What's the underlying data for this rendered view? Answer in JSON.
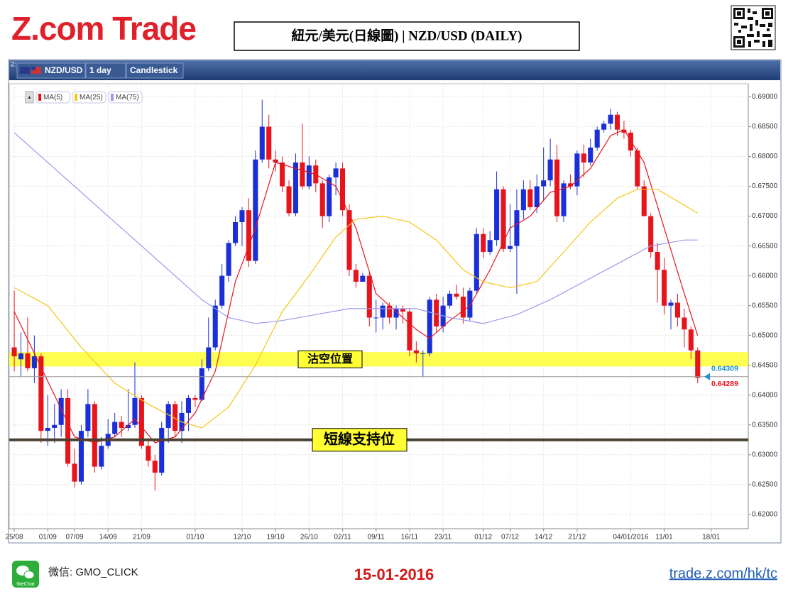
{
  "header": {
    "logo": "Z.com Trade",
    "title": "紐元/美元(日線圖) | NZD/USD  (DAILY)"
  },
  "toolbar": {
    "panel": "2:",
    "symbol": "NZD/USD",
    "interval": "1 day",
    "style": "Candlestick"
  },
  "chart_data": {
    "type": "candlestick",
    "up_color": "#1a2fd8",
    "down_color": "#e8141c",
    "grid": true,
    "open": [
      0.648,
      0.646,
      0.647,
      0.6445,
      0.6465,
      0.634,
      0.6345,
      0.635,
      0.6395,
      0.6285,
      0.6255,
      0.634,
      0.6385,
      0.628,
      0.6315,
      0.6335,
      0.6355,
      0.6345,
      0.635,
      0.6395,
      0.6315,
      0.629,
      0.627,
      0.6345,
      0.6385,
      0.634,
      0.637,
      0.6395,
      0.6392,
      0.6445,
      0.648,
      0.655,
      0.66,
      0.6655,
      0.669,
      0.671,
      0.6625,
      0.6795,
      0.685,
      0.6795,
      0.679,
      0.675,
      0.6705,
      0.679,
      0.675,
      0.6785,
      0.6755,
      0.67,
      0.6765,
      0.678,
      0.671,
      0.661,
      0.659,
      0.66,
      0.653,
      0.653,
      0.655,
      0.653,
      0.6545,
      0.654,
      0.6475,
      0.647,
      0.647,
      0.656,
      0.6515,
      0.655,
      0.657,
      0.6565,
      0.653,
      0.6575,
      0.667,
      0.664,
      0.666,
      0.6745,
      0.6645,
      0.665,
      0.671,
      0.6745,
      0.6715,
      0.675,
      0.676,
      0.6795,
      0.67,
      0.6755,
      0.675,
      0.6805,
      0.679,
      0.6815,
      0.6845,
      0.6855,
      0.687,
      0.6845,
      0.684,
      0.681,
      0.675,
      0.67,
      0.664,
      0.661,
      0.655,
      0.6555,
      0.653,
      0.651,
      0.6475
    ],
    "high": [
      0.6575,
      0.6505,
      0.653,
      0.65,
      0.647,
      0.64,
      0.6385,
      0.641,
      0.641,
      0.631,
      0.635,
      0.641,
      0.639,
      0.633,
      0.636,
      0.637,
      0.6365,
      0.641,
      0.6455,
      0.64,
      0.6325,
      0.63,
      0.6355,
      0.639,
      0.639,
      0.639,
      0.64,
      0.64,
      0.646,
      0.653,
      0.656,
      0.662,
      0.666,
      0.67,
      0.6715,
      0.673,
      0.681,
      0.6895,
      0.687,
      0.681,
      0.68,
      0.676,
      0.6805,
      0.6855,
      0.68,
      0.6795,
      0.676,
      0.677,
      0.679,
      0.679,
      0.672,
      0.662,
      0.6605,
      0.6605,
      0.656,
      0.6555,
      0.6555,
      0.655,
      0.655,
      0.6545,
      0.649,
      0.6475,
      0.6565,
      0.657,
      0.6565,
      0.6575,
      0.6585,
      0.658,
      0.658,
      0.668,
      0.668,
      0.6675,
      0.6775,
      0.675,
      0.672,
      0.6745,
      0.676,
      0.676,
      0.677,
      0.6815,
      0.683,
      0.682,
      0.676,
      0.677,
      0.681,
      0.682,
      0.683,
      0.685,
      0.686,
      0.688,
      0.6875,
      0.686,
      0.6845,
      0.6815,
      0.676,
      0.6705,
      0.6655,
      0.663,
      0.656,
      0.657,
      0.6545,
      0.6515,
      0.648
    ],
    "low": [
      0.644,
      0.643,
      0.644,
      0.642,
      0.632,
      0.6315,
      0.632,
      0.633,
      0.628,
      0.6245,
      0.625,
      0.633,
      0.627,
      0.6275,
      0.631,
      0.633,
      0.633,
      0.634,
      0.6345,
      0.631,
      0.628,
      0.624,
      0.6265,
      0.632,
      0.633,
      0.632,
      0.634,
      0.638,
      0.639,
      0.644,
      0.6475,
      0.6545,
      0.659,
      0.665,
      0.665,
      0.6615,
      0.662,
      0.679,
      0.678,
      0.6775,
      0.674,
      0.67,
      0.67,
      0.6745,
      0.6745,
      0.674,
      0.668,
      0.669,
      0.6735,
      0.67,
      0.66,
      0.658,
      0.659,
      0.6515,
      0.6505,
      0.651,
      0.652,
      0.651,
      0.652,
      0.6465,
      0.6455,
      0.643,
      0.6465,
      0.6505,
      0.6505,
      0.6545,
      0.656,
      0.652,
      0.6525,
      0.657,
      0.663,
      0.6635,
      0.665,
      0.664,
      0.664,
      0.657,
      0.6695,
      0.671,
      0.6705,
      0.6725,
      0.675,
      0.669,
      0.669,
      0.6745,
      0.6735,
      0.6765,
      0.6785,
      0.681,
      0.684,
      0.6845,
      0.6835,
      0.683,
      0.68,
      0.6745,
      0.67,
      0.663,
      0.6555,
      0.6535,
      0.651,
      0.6515,
      0.648,
      0.646,
      0.642
    ],
    "close": [
      0.6465,
      0.647,
      0.6445,
      0.6465,
      0.634,
      0.6345,
      0.635,
      0.6395,
      0.6285,
      0.6255,
      0.634,
      0.6385,
      0.628,
      0.6315,
      0.6335,
      0.6355,
      0.6345,
      0.635,
      0.6395,
      0.6315,
      0.629,
      0.627,
      0.6345,
      0.6385,
      0.634,
      0.637,
      0.6395,
      0.6392,
      0.6445,
      0.648,
      0.655,
      0.66,
      0.6655,
      0.669,
      0.671,
      0.6625,
      0.6795,
      0.685,
      0.6795,
      0.679,
      0.675,
      0.6705,
      0.679,
      0.675,
      0.6785,
      0.6755,
      0.67,
      0.6765,
      0.678,
      0.671,
      0.661,
      0.659,
      0.66,
      0.653,
      0.653,
      0.655,
      0.653,
      0.6545,
      0.654,
      0.6475,
      0.647,
      0.647,
      0.656,
      0.6515,
      0.655,
      0.657,
      0.6565,
      0.653,
      0.6575,
      0.667,
      0.664,
      0.666,
      0.6745,
      0.6645,
      0.665,
      0.671,
      0.6745,
      0.6715,
      0.675,
      0.676,
      0.6795,
      0.67,
      0.6755,
      0.675,
      0.6805,
      0.679,
      0.6815,
      0.6845,
      0.6855,
      0.687,
      0.6845,
      0.684,
      0.681,
      0.675,
      0.67,
      0.664,
      0.661,
      0.655,
      0.6555,
      0.653,
      0.651,
      0.6475,
      0.6429
    ],
    "series": [
      {
        "name": "MA(5)",
        "color": "#e8141c",
        "x": [
          0,
          3,
          6,
          9,
          12,
          15,
          18,
          21,
          24,
          27,
          30,
          33,
          36,
          39,
          42,
          45,
          48,
          51,
          54,
          57,
          60,
          62,
          65,
          68,
          71,
          74,
          77,
          80,
          83,
          86,
          89,
          91,
          94,
          97,
          100,
          102
        ],
        "values": [
          0.654,
          0.647,
          0.64,
          0.633,
          0.632,
          0.633,
          0.636,
          0.632,
          0.633,
          0.637,
          0.644,
          0.659,
          0.668,
          0.679,
          0.678,
          0.677,
          0.675,
          0.668,
          0.657,
          0.654,
          0.651,
          0.6495,
          0.6525,
          0.655,
          0.661,
          0.668,
          0.67,
          0.674,
          0.675,
          0.678,
          0.6835,
          0.6845,
          0.679,
          0.668,
          0.657,
          0.65
        ]
      },
      {
        "name": "MA(25)",
        "color": "#f5c518",
        "x": [
          0,
          5,
          10,
          15,
          20,
          25,
          28,
          32,
          36,
          40,
          44,
          48,
          51,
          55,
          59,
          63,
          67,
          70,
          74,
          78,
          82,
          86,
          90,
          93,
          96,
          99,
          102
        ],
        "values": [
          0.658,
          0.655,
          0.648,
          0.642,
          0.6385,
          0.6355,
          0.6345,
          0.638,
          0.645,
          0.654,
          0.66,
          0.6665,
          0.6695,
          0.67,
          0.669,
          0.666,
          0.661,
          0.659,
          0.658,
          0.659,
          0.664,
          0.669,
          0.673,
          0.6745,
          0.6745,
          0.6725,
          0.6705
        ]
      },
      {
        "name": "MA(75)",
        "color": "#9a9aec",
        "x": [
          0,
          6,
          12,
          18,
          24,
          28,
          32,
          36,
          40,
          45,
          50,
          55,
          60,
          65,
          70,
          75,
          80,
          85,
          90,
          95,
          100,
          102
        ],
        "values": [
          0.684,
          0.678,
          0.672,
          0.666,
          0.66,
          0.656,
          0.653,
          0.652,
          0.6525,
          0.6535,
          0.6545,
          0.6545,
          0.6545,
          0.653,
          0.652,
          0.6535,
          0.656,
          0.659,
          0.662,
          0.665,
          0.666,
          0.666
        ]
      }
    ],
    "xlim": [
      -0.75,
      109.55
    ],
    "xticks": [
      {
        "value": 0,
        "label": "25/08"
      },
      {
        "value": 5,
        "label": "01/09"
      },
      {
        "value": 9,
        "label": "07/09"
      },
      {
        "value": 14,
        "label": "14/09"
      },
      {
        "value": 19,
        "label": "21/09"
      },
      {
        "value": 27,
        "label": "01/10"
      },
      {
        "value": 34,
        "label": "12/10"
      },
      {
        "value": 39,
        "label": "19/10"
      },
      {
        "value": 44,
        "label": "26/10"
      },
      {
        "value": 49,
        "label": "02/11"
      },
      {
        "value": 54,
        "label": "09/11"
      },
      {
        "value": 59,
        "label": "16/11"
      },
      {
        "value": 64,
        "label": "23/11"
      },
      {
        "value": 70,
        "label": "01/12"
      },
      {
        "value": 74,
        "label": "07/12"
      },
      {
        "value": 79,
        "label": "14/12"
      },
      {
        "value": 84,
        "label": "21/12"
      },
      {
        "value": 92,
        "label": "04/01/2016"
      },
      {
        "value": 97,
        "label": "11/01"
      },
      {
        "value": 104,
        "label": "18/01"
      }
    ],
    "ylim": [
      0.6176,
      0.6922
    ],
    "yticks": [
      {
        "value": 0.62,
        "label": "0.62000"
      },
      {
        "value": 0.625,
        "label": "0.62500"
      },
      {
        "value": 0.63,
        "label": "0.63000"
      },
      {
        "value": 0.635,
        "label": "0.63500"
      },
      {
        "value": 0.64,
        "label": "0.64000"
      },
      {
        "value": 0.645,
        "label": "0.64500"
      },
      {
        "value": 0.65,
        "label": "0.65000"
      },
      {
        "value": 0.655,
        "label": "0.65500"
      },
      {
        "value": 0.66,
        "label": "0.66000"
      },
      {
        "value": 0.665,
        "label": "0.66500"
      },
      {
        "value": 0.67,
        "label": "0.67000"
      },
      {
        "value": 0.675,
        "label": "0.67500"
      },
      {
        "value": 0.68,
        "label": "0.68000"
      },
      {
        "value": 0.685,
        "label": "0.68500"
      },
      {
        "value": 0.69,
        "label": "0.69000"
      }
    ],
    "price_markers": [
      {
        "value": 0.64309,
        "color": "#1a8fd0"
      },
      {
        "value": 0.64289,
        "color": "#e8141c"
      }
    ],
    "resistance": {
      "label": "沽空位置",
      "low": 0.6448,
      "high": 0.6472
    },
    "support": {
      "label": "短線支持位",
      "value": 0.6325
    }
  },
  "footer": {
    "wechat_icon": "WeChat",
    "wechat": "微信: GMO_CLICK",
    "date": "15-01-2016",
    "url": "trade.z.com/hk/tc"
  }
}
